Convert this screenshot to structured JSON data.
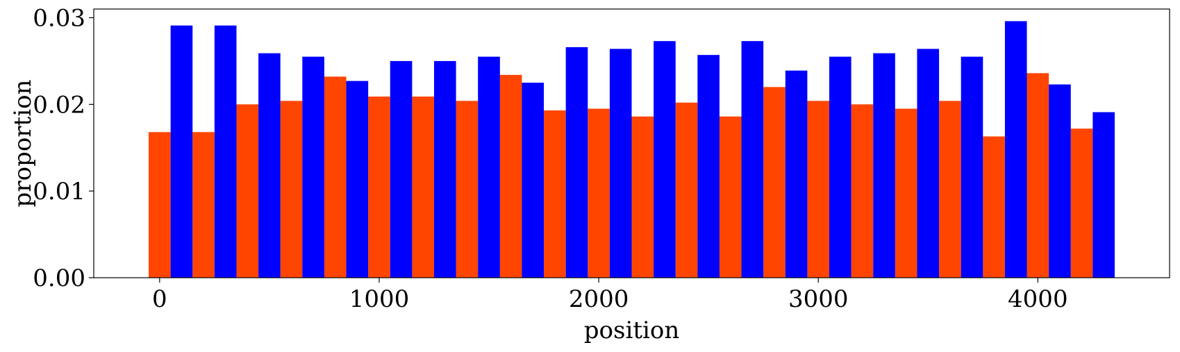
{
  "chart_data": {
    "type": "bar",
    "xlabel": "position",
    "ylabel": "proportion",
    "xlim": [
      -300,
      4600
    ],
    "ylim": [
      0,
      0.031
    ],
    "xticks": [
      0,
      1000,
      2000,
      3000,
      4000
    ],
    "xtick_labels": [
      "0",
      "1000",
      "2000",
      "3000",
      "4000"
    ],
    "yticks": [
      0,
      0.01,
      0.02,
      0.03
    ],
    "ytick_labels": [
      "0.00",
      "0.01",
      "0.02",
      "0.03"
    ],
    "bin_width": 100,
    "grid": false,
    "series": [
      {
        "color": "#ff4500",
        "x": [
          0,
          200,
          400,
          600,
          800,
          1000,
          1200,
          1400,
          1600,
          1800,
          2000,
          2200,
          2400,
          2600,
          2800,
          3000,
          3200,
          3400,
          3600,
          3800,
          4000,
          4200
        ],
        "values": [
          0.0168,
          0.0168,
          0.02,
          0.0204,
          0.0232,
          0.0209,
          0.0209,
          0.0204,
          0.0234,
          0.0193,
          0.0195,
          0.0186,
          0.0202,
          0.0186,
          0.022,
          0.0204,
          0.02,
          0.0195,
          0.0204,
          0.0163,
          0.0236,
          0.0172
        ]
      },
      {
        "color": "#0000ff",
        "x": [
          100,
          300,
          500,
          700,
          900,
          1100,
          1300,
          1500,
          1700,
          1900,
          2100,
          2300,
          2500,
          2700,
          2900,
          3100,
          3300,
          3500,
          3700,
          3900,
          4100,
          4300
        ],
        "values": [
          0.0291,
          0.0291,
          0.0259,
          0.0255,
          0.0227,
          0.025,
          0.025,
          0.0255,
          0.0225,
          0.0266,
          0.0264,
          0.0273,
          0.0257,
          0.0273,
          0.0239,
          0.0255,
          0.0259,
          0.0264,
          0.0255,
          0.0296,
          0.0223,
          0.0191
        ]
      }
    ]
  }
}
